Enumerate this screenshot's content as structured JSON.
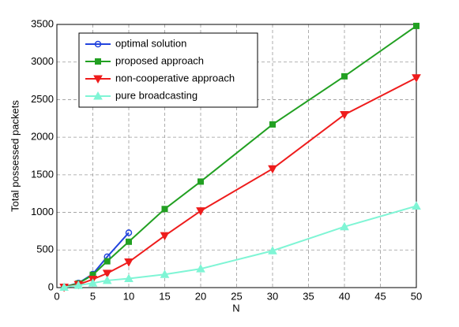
{
  "chart_data": {
    "type": "line",
    "xlabel": "N",
    "ylabel": "Total possessed packets",
    "x": [
      1,
      3,
      5,
      7,
      10,
      15,
      20,
      30,
      40,
      50
    ],
    "series": [
      {
        "name": "optimal solution",
        "color": "#2244dd",
        "marker": "circle",
        "values": [
          10,
          60,
          180,
          410,
          730,
          null,
          null,
          null,
          null,
          null
        ]
      },
      {
        "name": "proposed approach",
        "color": "#22a022",
        "marker": "square",
        "values": [
          10,
          55,
          170,
          350,
          610,
          1045,
          1410,
          2170,
          2810,
          3480
        ]
      },
      {
        "name": "non-cooperative approach",
        "color": "#ee1c1c",
        "marker": "triangle-down",
        "values": [
          5,
          40,
          110,
          190,
          340,
          690,
          1020,
          1580,
          2300,
          2790
        ]
      },
      {
        "name": "pure broadcasting",
        "color": "#7ff5d5",
        "marker": "triangle-up",
        "values": [
          5,
          30,
          60,
          95,
          120,
          175,
          250,
          490,
          810,
          1085
        ]
      }
    ],
    "xlim": [
      0,
      50
    ],
    "xticks": [
      0,
      5,
      10,
      15,
      20,
      25,
      30,
      35,
      40,
      45,
      50
    ],
    "ylim": [
      0,
      3500
    ],
    "yticks": [
      0,
      500,
      1000,
      1500,
      2000,
      2500,
      3000,
      3500
    ],
    "grid": true,
    "legend": "upper left"
  }
}
